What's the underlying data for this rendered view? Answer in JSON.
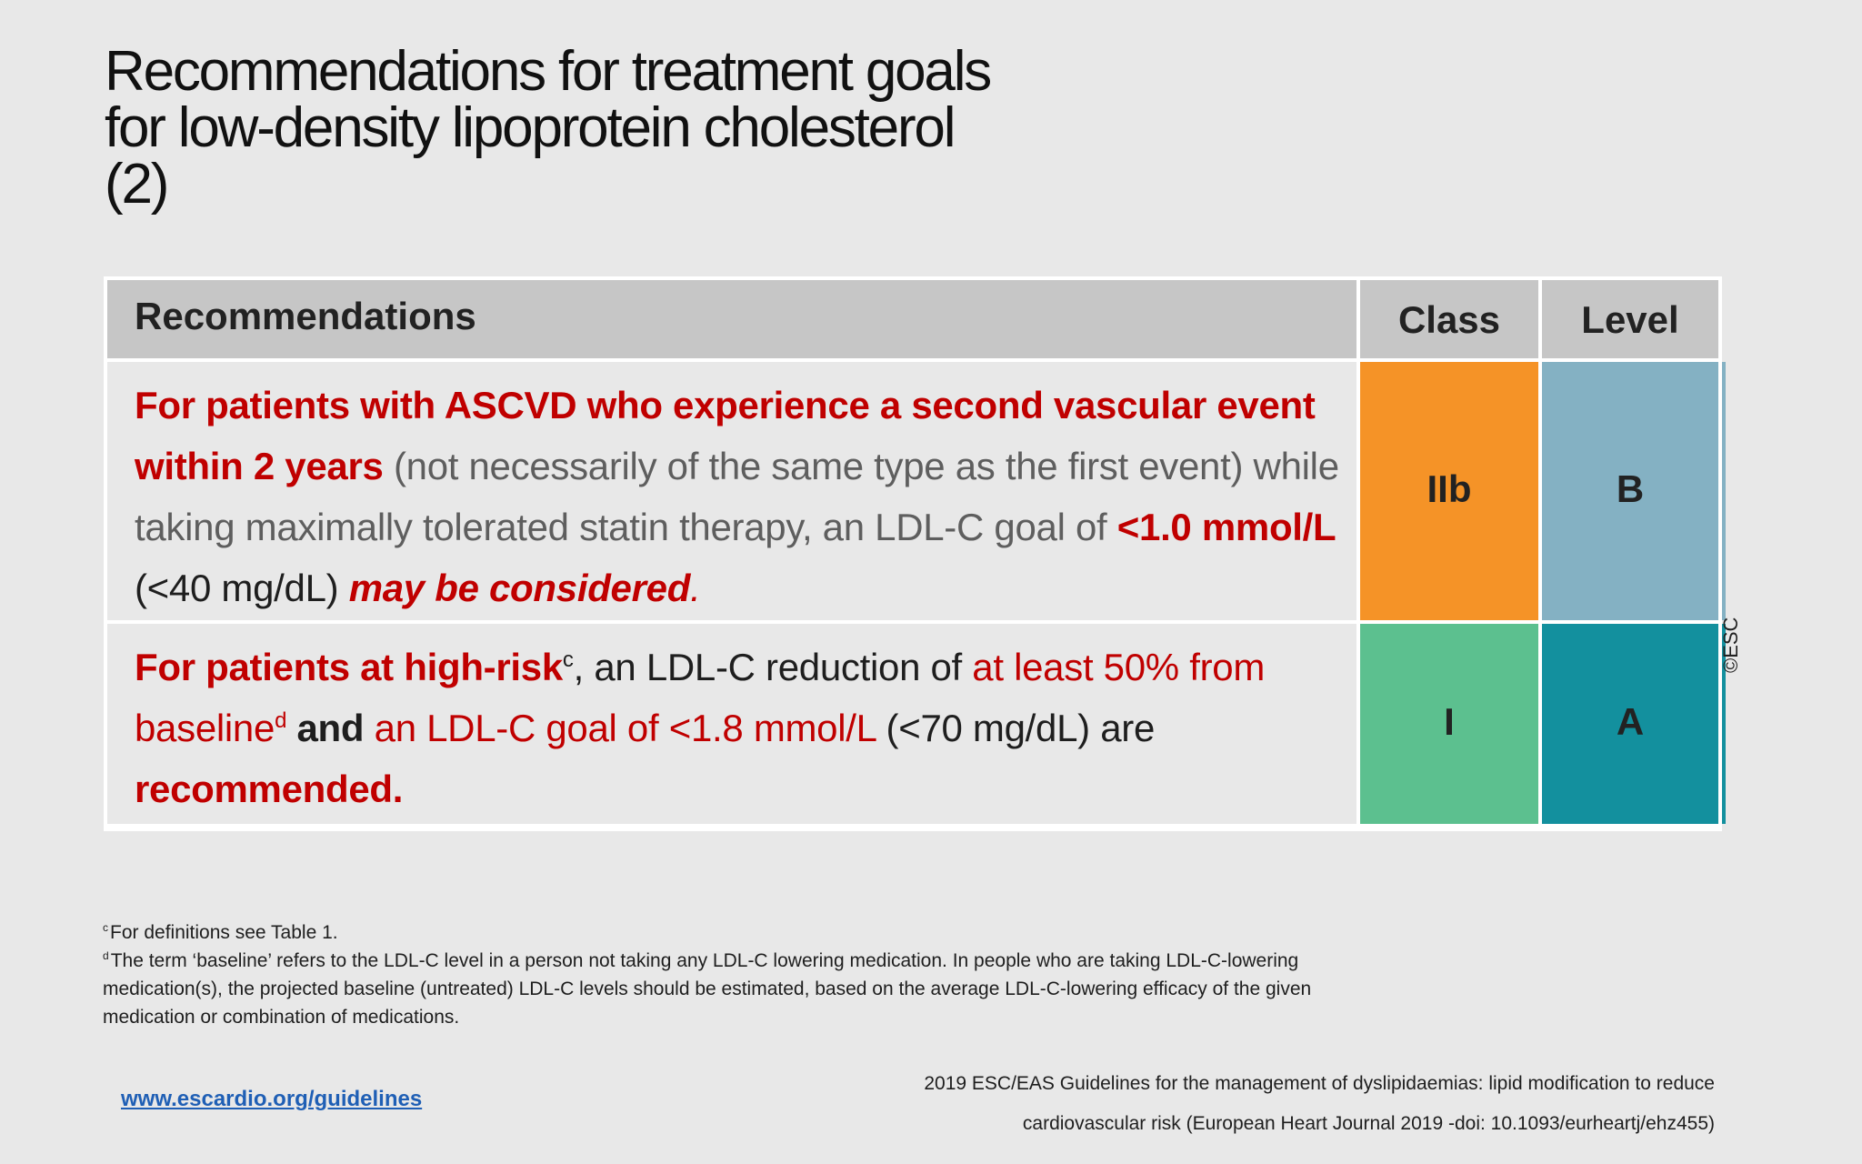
{
  "title": {
    "line1": "Recommendations for treatment goals",
    "line2": "for  low-density lipoprotein cholesterol",
    "line3": "(2)"
  },
  "table": {
    "headers": {
      "recommendations": "Recommendations",
      "class": "Class",
      "level": "Level"
    },
    "rows": [
      {
        "text_parts": {
          "p1": "For patients with ASCVD who experience a second vascular event  within 2 years",
          "p2": " (not necessarily of the same type as the first event) while  taking maximally tolerated statin therapy, an LDL-C goal of ",
          "p3": "<1.0 mmol/L",
          "p4": "  (<40 mg/dL) ",
          "p5": "may be considered",
          "p6": "."
        },
        "class": "IIb",
        "level": "B",
        "class_color": "#f59327",
        "level_color": "#84b1c3"
      },
      {
        "text_parts": {
          "p1": "For patients at high-risk",
          "sup1": "c",
          "p2": ", an LDL-C reduction of ",
          "p3": "at least 50% from  baseline",
          "sup2": "d",
          "p4": " and ",
          "p5": "an LDL-C goal of <1.8 mmol/L",
          "p6": " (<70 mg/dL) are  ",
          "p7": "recommended."
        },
        "class": "I",
        "level": "A",
        "class_color": "#5cc08f",
        "level_color": "#13909e"
      }
    ]
  },
  "copyright": "©ESC",
  "footnotes": {
    "c_marker": "c",
    "c_text": "For definitions see Table 1.",
    "d_marker": "d",
    "d_text": "The term ‘baseline’ refers to the LDL-C level in a person not taking any LDL-C lowering medication. In people who  are taking LDL-C-lowering medication(s), the projected baseline (untreated) LDL-C levels should be estimated, based  on the average LDL-C-lowering efficacy of the given medication or combination of medications."
  },
  "footer": {
    "link": "www.escardio.org/guidelines",
    "citation_line1": "2019 ESC/EAS Guidelines for the management of dyslipidaemias: lipid modification to reduce",
    "citation_line2": "cardiovascular risk (European Heart Journal 2019 -doi: 10.1093/eurheartj/ehz455)"
  }
}
